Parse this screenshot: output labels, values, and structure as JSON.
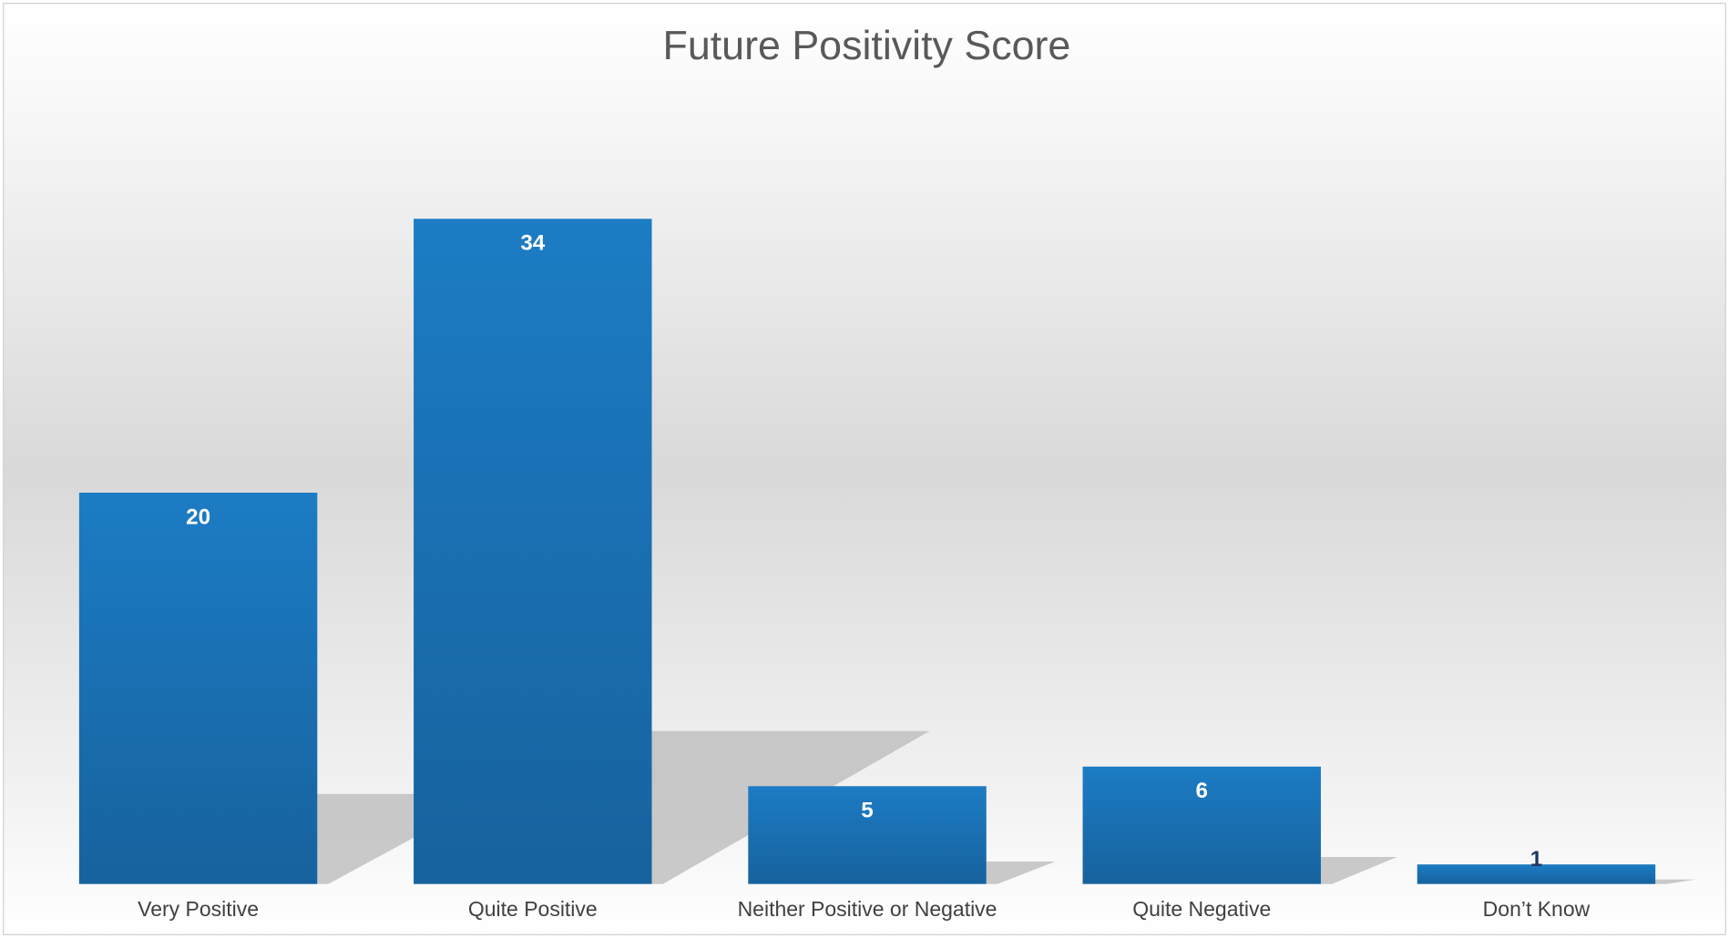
{
  "chart_data": {
    "type": "bar",
    "title": "Future Positivity Score",
    "categories": [
      "Very Positive",
      "Quite Positive",
      "Neither Positive or Negative",
      "Quite Negative",
      "Don’t Know"
    ],
    "values": [
      20,
      34,
      5,
      6,
      1
    ],
    "color": "#1b75bb"
  }
}
